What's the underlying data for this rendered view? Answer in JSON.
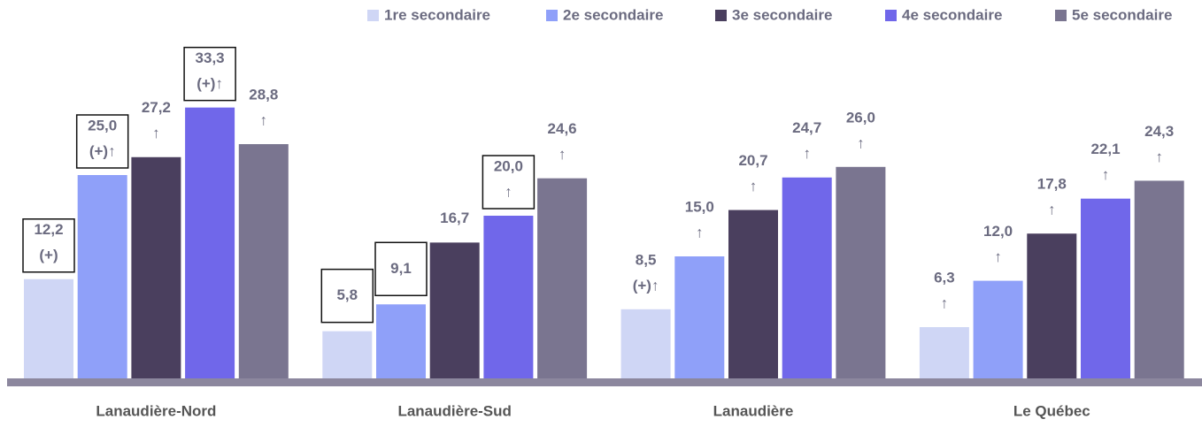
{
  "chart_data": {
    "type": "bar",
    "categories": [
      "Lanaudière-Nord",
      "Lanaudière-Sud",
      "Lanaudière",
      "Le Québec"
    ],
    "series": [
      {
        "name": "1re secondaire",
        "color": "#cfd6f5",
        "values": [
          12.2,
          5.8,
          8.5,
          6.3
        ],
        "value_labels": [
          "12,2",
          "5,8",
          "8,5",
          "6,3"
        ],
        "annotations": [
          "(+)",
          null,
          "(+)↑",
          "↑"
        ],
        "boxed": [
          true,
          true,
          false,
          false
        ]
      },
      {
        "name": "2e secondaire",
        "color": "#8fa0f9",
        "values": [
          25.0,
          9.1,
          15.0,
          12.0
        ],
        "value_labels": [
          "25,0",
          "9,1",
          "15,0",
          "12,0"
        ],
        "annotations": [
          "(+)↑",
          null,
          "↑",
          "↑"
        ],
        "boxed": [
          true,
          true,
          false,
          false
        ]
      },
      {
        "name": "3e secondaire",
        "color": "#4a3f5e",
        "values": [
          27.2,
          16.7,
          20.7,
          17.8
        ],
        "value_labels": [
          "27,2",
          "16,7",
          "20,7",
          "17,8"
        ],
        "annotations": [
          "↑",
          null,
          "↑",
          "↑"
        ],
        "boxed": [
          false,
          false,
          false,
          false
        ]
      },
      {
        "name": "4e secondaire",
        "color": "#7067ea",
        "values": [
          33.3,
          20.0,
          24.7,
          22.1
        ],
        "value_labels": [
          "33,3",
          "20,0",
          "24,7",
          "22,1"
        ],
        "annotations": [
          "(+)↑",
          "↑",
          "↑",
          "↑"
        ],
        "boxed": [
          true,
          true,
          false,
          false
        ]
      },
      {
        "name": "5e secondaire",
        "color": "#7a7590",
        "values": [
          28.8,
          24.6,
          26.0,
          24.3
        ],
        "value_labels": [
          "28,8",
          "24,6",
          "26,0",
          "24,3"
        ],
        "annotations": [
          "↑",
          "↑",
          "↑",
          "↑"
        ],
        "boxed": [
          false,
          false,
          false,
          false
        ]
      }
    ],
    "legend": "top-right"
  }
}
